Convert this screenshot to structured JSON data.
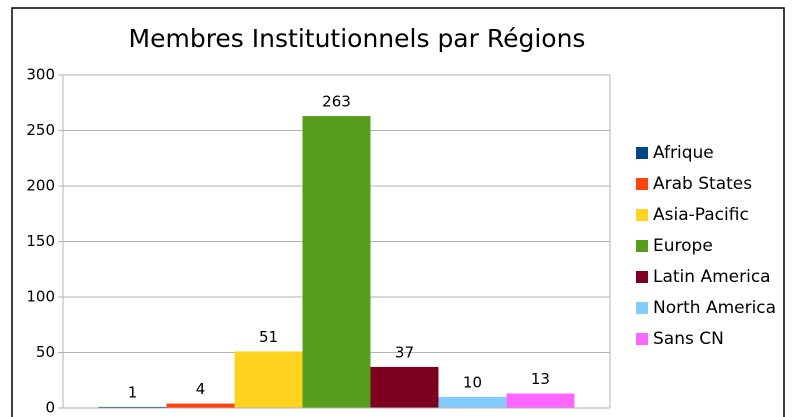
{
  "chart_data": {
    "type": "bar",
    "title": "Membres Institutionnels par Régions",
    "categories": [
      null
    ],
    "series": [
      {
        "name": "Afrique",
        "color": "#004586",
        "values": [
          1
        ]
      },
      {
        "name": "Arab States",
        "color": "#ff420e",
        "values": [
          4
        ]
      },
      {
        "name": "Asia-Pacific",
        "color": "#ffd320",
        "values": [
          51
        ]
      },
      {
        "name": "Europe",
        "color": "#579d1c",
        "values": [
          263
        ]
      },
      {
        "name": "Latin America",
        "color": "#7e0021",
        "values": [
          37
        ]
      },
      {
        "name": "North America",
        "color": "#83caff",
        "values": [
          10
        ]
      },
      {
        "name": "Sans CN",
        "color": "#ff66ff",
        "values": [
          13
        ]
      }
    ],
    "ylim": [
      0,
      300
    ],
    "yticks": [
      0,
      50,
      100,
      150,
      200,
      250,
      300
    ],
    "grid": true,
    "legend": "right"
  }
}
